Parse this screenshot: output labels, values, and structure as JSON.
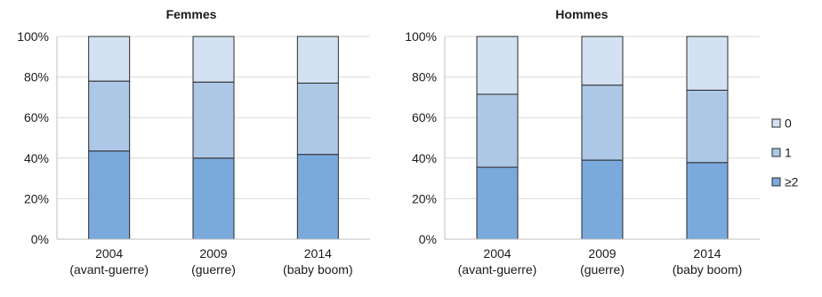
{
  "chart_data": [
    {
      "type": "bar",
      "stacked": true,
      "percent": true,
      "title": "Femmes",
      "categories": [
        [
          "2004",
          "(avant-guerre)"
        ],
        [
          "2009",
          "(guerre)"
        ],
        [
          "2014",
          "(baby boom)"
        ]
      ],
      "ylim": [
        0,
        100
      ],
      "ytick_labels": [
        "0%",
        "20%",
        "40%",
        "60%",
        "80%",
        "100%"
      ],
      "grid": true,
      "series": [
        {
          "name": "≥2",
          "values": [
            43.5,
            40,
            41.8
          ],
          "color": "#7aa9dc"
        },
        {
          "name": "1",
          "values": [
            34.5,
            37.5,
            35.2
          ],
          "color": "#adc7e6"
        },
        {
          "name": "0",
          "values": [
            22,
            22.5,
            23
          ],
          "color": "#d4e1f3"
        }
      ]
    },
    {
      "type": "bar",
      "stacked": true,
      "percent": true,
      "title": "Hommes",
      "categories": [
        [
          "2004",
          "(avant-guerre)"
        ],
        [
          "2009",
          "(guerre)"
        ],
        [
          "2014",
          "(baby boom)"
        ]
      ],
      "ylim": [
        0,
        100
      ],
      "ytick_labels": [
        "0%",
        "20%",
        "40%",
        "60%",
        "80%",
        "100%"
      ],
      "grid": true,
      "series": [
        {
          "name": "≥2",
          "values": [
            35.5,
            39,
            37.8
          ],
          "color": "#7aa9dc"
        },
        {
          "name": "1",
          "values": [
            36,
            37,
            35.7
          ],
          "color": "#adc7e6"
        },
        {
          "name": "0",
          "values": [
            28.5,
            24,
            26.5
          ],
          "color": "#d4e1f3"
        }
      ]
    }
  ],
  "legend": {
    "placement": "right",
    "items": [
      {
        "label": "0",
        "color": "#d4e1f3"
      },
      {
        "label": "1",
        "color": "#adc7e6"
      },
      {
        "label": "≥2",
        "color": "#7aa9dc"
      }
    ]
  }
}
